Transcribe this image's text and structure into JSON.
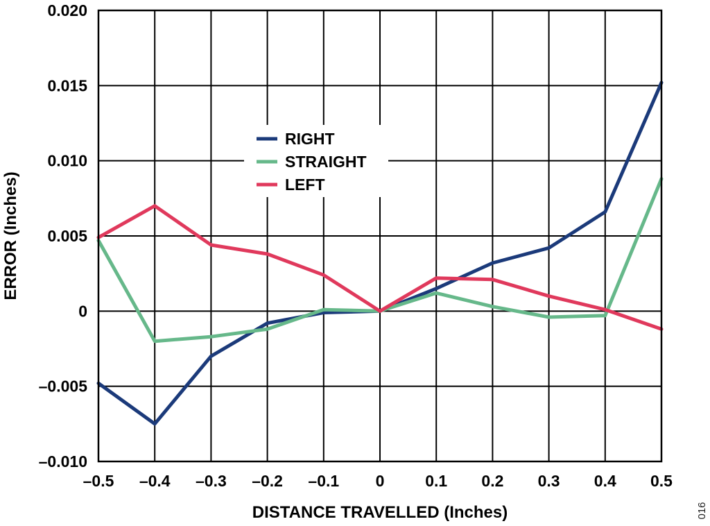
{
  "chart_data": {
    "type": "line",
    "xlabel": "DISTANCE TRAVELLED (Inches)",
    "ylabel": "ERROR (Inches)",
    "xlim": [
      -0.5,
      0.5
    ],
    "ylim": [
      -0.01,
      0.02
    ],
    "x": [
      -0.5,
      -0.4,
      -0.3,
      -0.2,
      -0.1,
      0,
      0.1,
      0.2,
      0.3,
      0.4,
      0.5
    ],
    "x_tick_labels": [
      "–0.5",
      "–0.4",
      "–0.3",
      "–0.2",
      "–0.1",
      "0",
      "0.1",
      "0.2",
      "0.3",
      "0.4",
      "0.5"
    ],
    "y_ticks": [
      -0.01,
      -0.005,
      0,
      0.005,
      0.01,
      0.015,
      0.02
    ],
    "y_tick_labels": [
      "–0.010",
      "–0.005",
      "0",
      "0.005",
      "0.010",
      "0.015",
      "0.020"
    ],
    "grid": true,
    "legend_position": "upper-center",
    "series": [
      {
        "name": "RIGHT",
        "color": "#1b3a7a",
        "values": [
          -0.0048,
          -0.0075,
          -0.003,
          -0.0008,
          -0.0001,
          0.0,
          0.0015,
          0.0032,
          0.0042,
          0.0066,
          0.0152
        ]
      },
      {
        "name": "STRAIGHT",
        "color": "#66b88a",
        "values": [
          0.0047,
          -0.002,
          -0.0017,
          -0.0012,
          0.0001,
          0.0,
          0.0012,
          0.0003,
          -0.0004,
          -0.0003,
          0.0088
        ]
      },
      {
        "name": "LEFT",
        "color": "#e0395c",
        "values": [
          0.0049,
          0.007,
          0.0044,
          0.0038,
          0.0024,
          0.0,
          0.0022,
          0.0021,
          0.001,
          0.0001,
          -0.0012
        ]
      }
    ]
  },
  "figure_number": "016"
}
